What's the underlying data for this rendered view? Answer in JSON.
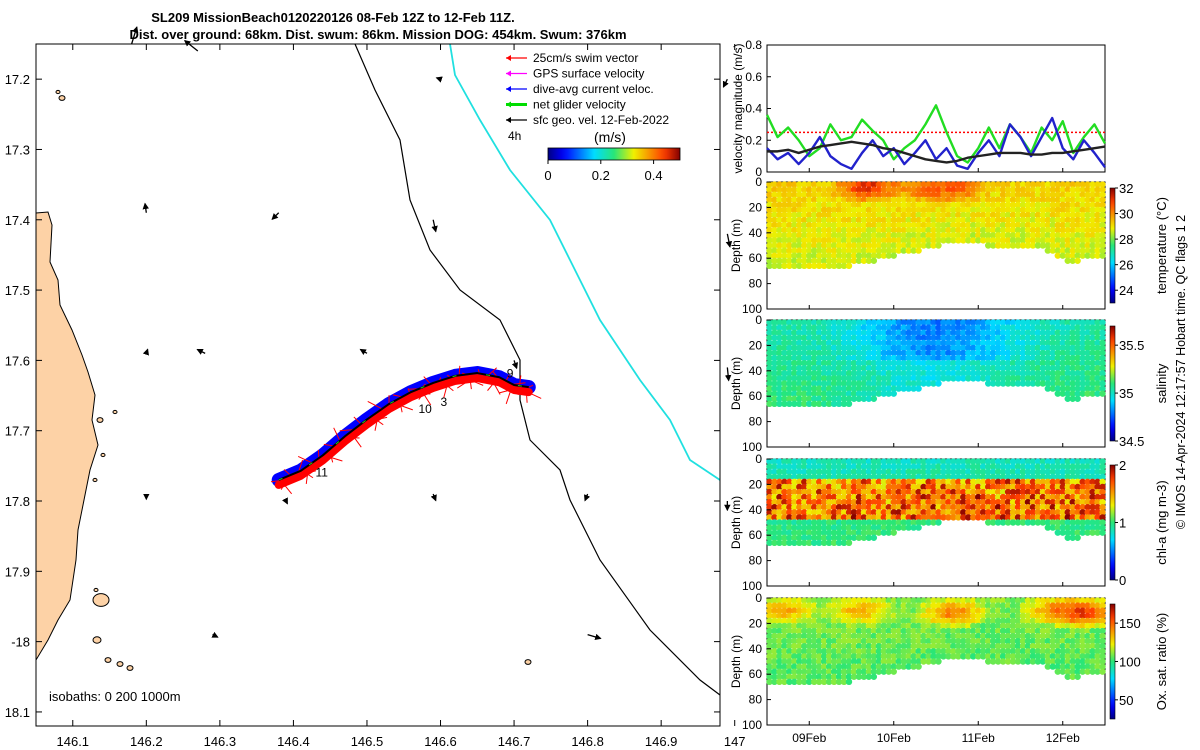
{
  "header": {
    "title_line1": "SL209 MissionBeach0120220126 08-Feb 12Z to 12-Feb 11Z.",
    "title_line2": "Dist. over ground: 68km. Dist. swum: 86km. Mission DOG: 454km. Swum: 376km"
  },
  "side_label": "© IMOS 14-Apr-2024 12:17:57 Hobart time. QC flags 1  2",
  "chart_data": [
    {
      "type": "map",
      "x_ticks": [
        146.1,
        146.2,
        146.3,
        146.4,
        146.5,
        146.6,
        146.7,
        146.8,
        146.9,
        147
      ],
      "x_tick_labels": [
        "146.1",
        "146.2",
        "146.3",
        "146.4",
        "146.5",
        "146.6",
        "146.7",
        "146.8",
        "146.9",
        "147"
      ],
      "y_ticks": [
        -17.2,
        -17.3,
        -17.4,
        -17.5,
        -17.6,
        -17.7,
        -17.8,
        -17.9,
        -18,
        -18.1
      ],
      "y_tick_labels": [
        "17.2",
        "17.3",
        "17.4",
        "17.5",
        "17.6",
        "17.7",
        "17.8",
        "17.9",
        "-18",
        "18.1"
      ],
      "xlim": [
        146.05,
        146.98
      ],
      "ylim": [
        -18.12,
        -17.15
      ],
      "legend": {
        "placement": "top-right",
        "entries": [
          {
            "label": "25cm/s swim vector",
            "color": "#ff0000"
          },
          {
            "label": "GPS surface velocity",
            "color": "#ff00ff"
          },
          {
            "label": "dive-avg current veloc.",
            "color": "#0000ff"
          },
          {
            "label": "net glider velocity",
            "color": "#00dd00"
          },
          {
            "label": "sfc geo. vel. 12-Feb-2022",
            "color": "#000000"
          }
        ]
      },
      "time_scale_label": "4h",
      "colorbar": {
        "label": "(m/s)",
        "range": [
          0,
          0.5
        ],
        "ticks": [
          0,
          0.2,
          0.4
        ],
        "tick_labels": [
          "0",
          "0.2",
          "0.4"
        ]
      },
      "isobath_label": "isobaths: 0   200  1000m",
      "track_day_labels": [
        {
          "label": "9",
          "lon": 146.69,
          "lat": -17.624
        },
        {
          "label": "10",
          "lon": 146.57,
          "lat": -17.675
        },
        {
          "label": "3",
          "lon": 146.6,
          "lat": -17.665
        },
        {
          "label": "11",
          "lon": 146.43,
          "lat": -17.765
        }
      ],
      "track": [
        {
          "lon": 146.38,
          "lat": -17.77
        },
        {
          "lon": 146.41,
          "lat": -17.757
        },
        {
          "lon": 146.44,
          "lat": -17.735
        },
        {
          "lon": 146.47,
          "lat": -17.708
        },
        {
          "lon": 146.5,
          "lat": -17.684
        },
        {
          "lon": 146.53,
          "lat": -17.662
        },
        {
          "lon": 146.56,
          "lat": -17.645
        },
        {
          "lon": 146.59,
          "lat": -17.632
        },
        {
          "lon": 146.62,
          "lat": -17.622
        },
        {
          "lon": 146.65,
          "lat": -17.618
        },
        {
          "lon": 146.68,
          "lat": -17.624
        },
        {
          "lon": 146.7,
          "lat": -17.635
        },
        {
          "lon": 146.72,
          "lat": -17.638
        }
      ],
      "geo_vectors": [
        {
          "lon": 146.18,
          "lat": -17.15,
          "u": 0.04,
          "v": 0.13
        },
        {
          "lon": 146.27,
          "lat": -17.16,
          "u": -0.1,
          "v": 0.08
        },
        {
          "lon": 146.6,
          "lat": -17.2,
          "u": -0.03,
          "v": 0.01
        },
        {
          "lon": 146.99,
          "lat": -17.2,
          "u": -0.03,
          "v": -0.06
        },
        {
          "lon": 146.2,
          "lat": -17.39,
          "u": -0.01,
          "v": 0.07
        },
        {
          "lon": 146.38,
          "lat": -17.39,
          "u": -0.05,
          "v": -0.05
        },
        {
          "lon": 146.59,
          "lat": -17.4,
          "u": 0.02,
          "v": -0.09
        },
        {
          "lon": 146.99,
          "lat": -17.42,
          "u": 0.02,
          "v": -0.1
        },
        {
          "lon": 146.2,
          "lat": -17.59,
          "u": 0.01,
          "v": 0.03
        },
        {
          "lon": 146.28,
          "lat": -17.59,
          "u": -0.06,
          "v": 0.03
        },
        {
          "lon": 146.5,
          "lat": -17.59,
          "u": -0.05,
          "v": 0.03
        },
        {
          "lon": 146.7,
          "lat": -17.6,
          "u": 0.02,
          "v": -0.06
        },
        {
          "lon": 146.99,
          "lat": -17.61,
          "u": 0.01,
          "v": -0.1
        },
        {
          "lon": 146.2,
          "lat": -17.79,
          "u": 0.0,
          "v": -0.04
        },
        {
          "lon": 146.39,
          "lat": -17.8,
          "u": 0.01,
          "v": -0.02
        },
        {
          "lon": 146.59,
          "lat": -17.79,
          "u": 0.02,
          "v": -0.05
        },
        {
          "lon": 146.8,
          "lat": -17.79,
          "u": -0.02,
          "v": -0.05
        },
        {
          "lon": 146.99,
          "lat": -17.8,
          "u": 0.0,
          "v": -0.07
        },
        {
          "lon": 146.29,
          "lat": -17.99,
          "u": 0.04,
          "v": -0.02
        },
        {
          "lon": 146.8,
          "lat": -17.99,
          "u": 0.1,
          "v": -0.03
        }
      ]
    },
    {
      "type": "line",
      "ylabel": "velocity magnitude (m/s)",
      "ylim": [
        0,
        0.8
      ],
      "y_ticks": [
        0,
        0.2,
        0.4,
        0.6,
        0.8
      ],
      "y_tick_labels": [
        "0",
        "0.2",
        "0.4",
        "0.6",
        "0.8"
      ],
      "x": [
        0,
        0.125,
        0.25,
        0.375,
        0.5,
        0.625,
        0.75,
        0.875,
        1,
        1.125,
        1.25,
        1.375,
        1.5,
        1.625,
        1.75,
        1.875,
        2,
        2.125,
        2.25,
        2.375,
        2.5,
        2.625,
        2.75,
        2.875,
        3,
        3.125,
        3.25,
        3.375,
        3.5,
        3.625,
        3.75,
        3.875,
        4
      ],
      "series": [
        {
          "color": "#ff0000",
          "style": "dotted",
          "values": [
            0.25,
            0.25,
            0.25,
            0.25,
            0.25,
            0.25,
            0.25,
            0.25,
            0.25,
            0.25,
            0.25,
            0.25,
            0.25,
            0.25,
            0.25,
            0.25,
            0.25,
            0.25,
            0.25,
            0.25,
            0.25,
            0.25,
            0.25,
            0.25,
            0.25,
            0.25,
            0.25,
            0.25,
            0.25,
            0.25,
            0.25,
            0.25,
            0.25
          ]
        },
        {
          "color": "#22dd22",
          "values": [
            0.36,
            0.22,
            0.28,
            0.2,
            0.1,
            0.15,
            0.3,
            0.2,
            0.22,
            0.33,
            0.26,
            0.2,
            0.08,
            0.15,
            0.2,
            0.3,
            0.42,
            0.25,
            0.1,
            0.06,
            0.15,
            0.28,
            0.15,
            0.3,
            0.22,
            0.12,
            0.28,
            0.2,
            0.32,
            0.12,
            0.22,
            0.3,
            0.18
          ]
        },
        {
          "color": "#2222cc",
          "values": [
            0.15,
            0.08,
            0.12,
            0.05,
            0.12,
            0.22,
            0.1,
            0.05,
            0.02,
            0.12,
            0.2,
            0.1,
            0.15,
            0.05,
            0.12,
            0.2,
            0.08,
            0.15,
            0.04,
            0.02,
            0.12,
            0.2,
            0.1,
            0.3,
            0.22,
            0.1,
            0.22,
            0.34,
            0.15,
            0.08,
            0.2,
            0.12,
            0.03
          ]
        },
        {
          "color": "#222222",
          "values": [
            0.13,
            0.13,
            0.14,
            0.12,
            0.14,
            0.16,
            0.17,
            0.18,
            0.19,
            0.18,
            0.17,
            0.15,
            0.14,
            0.12,
            0.1,
            0.08,
            0.07,
            0.06,
            0.07,
            0.09,
            0.1,
            0.11,
            0.12,
            0.12,
            0.12,
            0.11,
            0.11,
            0.12,
            0.12,
            0.13,
            0.14,
            0.15,
            0.16
          ]
        }
      ]
    },
    {
      "type": "heatmap",
      "ylabel": "Depth (m)",
      "colorbar_label": "temperature (°C)",
      "ylim": [
        100,
        0
      ],
      "y_ticks": [
        0,
        20,
        40,
        60,
        80,
        100
      ],
      "y_tick_labels": [
        "0",
        "20",
        "40",
        "60",
        "80",
        "100"
      ],
      "cb_range": [
        23,
        32
      ],
      "cb_ticks": [
        24,
        26,
        28,
        30,
        32
      ],
      "cb_tick_labels": [
        "24",
        "26",
        "28",
        "30",
        "32"
      ],
      "surface_value": 29.2,
      "deep_value": 28.6,
      "hot_spots": [
        {
          "x": 1.2,
          "y": 2,
          "v": 31.5
        },
        {
          "x": 2.2,
          "y": 2,
          "v": 31.0
        },
        {
          "x": 1.9,
          "y": 3,
          "v": 30.5
        }
      ]
    },
    {
      "type": "heatmap",
      "ylabel": "Depth (m)",
      "colorbar_label": "salinity",
      "ylim": [
        100,
        0
      ],
      "y_ticks": [
        0,
        20,
        40,
        60,
        80,
        100
      ],
      "y_tick_labels": [
        "0",
        "20",
        "40",
        "60",
        "80",
        "100"
      ],
      "cb_range": [
        34.5,
        35.7
      ],
      "cb_ticks": [
        34.5,
        35,
        35.5
      ],
      "cb_tick_labels": [
        "34.5",
        "35",
        "35.5"
      ],
      "surface_value": 35.05,
      "deep_value": 35.1
    },
    {
      "type": "heatmap",
      "ylabel": "Depth (m)",
      "colorbar_label": "chl-a (mg m-3)",
      "ylim": [
        100,
        0
      ],
      "y_ticks": [
        0,
        20,
        40,
        60,
        80,
        100
      ],
      "y_tick_labels": [
        "0",
        "20",
        "40",
        "60",
        "80",
        "100"
      ],
      "cb_range": [
        0,
        2
      ],
      "cb_ticks": [
        0,
        1,
        2
      ],
      "cb_tick_labels": [
        "0",
        "1",
        "2"
      ],
      "surface_value": 0.85,
      "deep_value": 1.0
    },
    {
      "type": "heatmap",
      "ylabel": "Depth (m)",
      "colorbar_label": "Ox. sat. ratio (%)",
      "ylim": [
        100,
        0
      ],
      "y_ticks": [
        0,
        20,
        40,
        60,
        80,
        100
      ],
      "y_tick_labels": [
        "0",
        "20",
        "40",
        "60",
        "80",
        "100"
      ],
      "cb_range": [
        25,
        175
      ],
      "cb_ticks": [
        50,
        100,
        150
      ],
      "cb_tick_labels": [
        "50",
        "100",
        "150"
      ],
      "surface_value": 110,
      "deep_value": 105,
      "hot_spots": [
        {
          "x": 0.2,
          "y": 8,
          "v": 140
        },
        {
          "x": 1.1,
          "y": 8,
          "v": 138
        },
        {
          "x": 2.2,
          "y": 10,
          "v": 150
        },
        {
          "x": 3.4,
          "y": 8,
          "v": 145
        },
        {
          "x": 3.75,
          "y": 10,
          "v": 165
        }
      ]
    }
  ],
  "time_axis": {
    "x_ticks": [
      0.5,
      1.5,
      2.5,
      3.5
    ],
    "x_tick_labels": [
      "09Feb",
      "10Feb",
      "11Feb",
      "12Feb"
    ],
    "xlim": [
      0,
      4
    ]
  }
}
